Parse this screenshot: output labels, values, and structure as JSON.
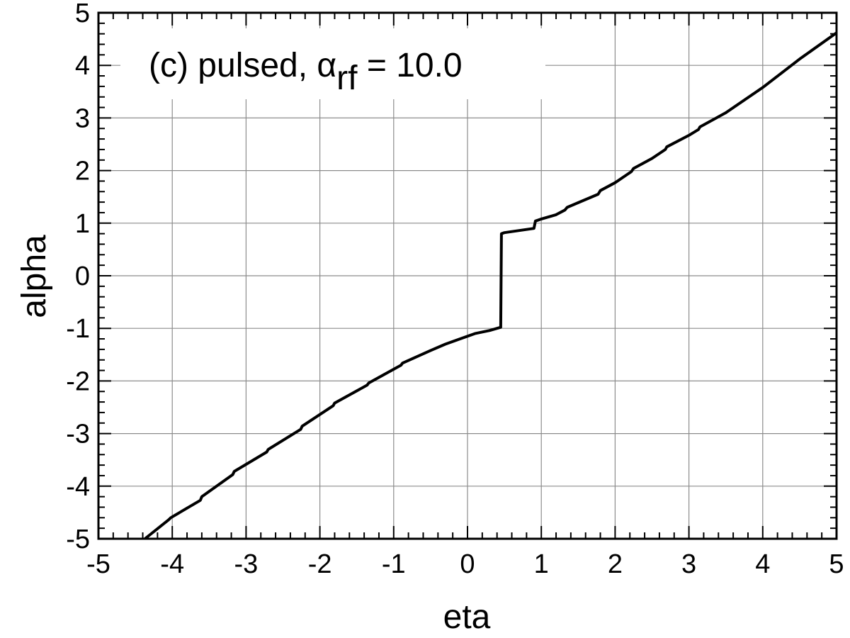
{
  "chart_data": {
    "type": "line",
    "title": "",
    "xlabel": "eta",
    "ylabel": "alpha",
    "xlim": [
      -5,
      5
    ],
    "ylim": [
      -5,
      5
    ],
    "grid": true,
    "x_ticks": [
      "-5",
      "-4",
      "-3",
      "-2",
      "-1",
      "0",
      "1",
      "2",
      "3",
      "4",
      "5"
    ],
    "y_ticks": [
      "-5",
      "-4",
      "-3",
      "-2",
      "-1",
      "0",
      "1",
      "2",
      "3",
      "4",
      "5"
    ],
    "annotation": {
      "prefix": "(c)  pulsed, ",
      "symbol": "α",
      "subscript": "rf",
      "suffix": " = 10.0"
    },
    "series": [
      {
        "color": "#000000",
        "x": [
          -4.37,
          -4.05,
          -4.02,
          -3.62,
          -3.6,
          -3.18,
          -3.16,
          -2.72,
          -2.7,
          -2.26,
          -2.24,
          -1.82,
          -1.8,
          -1.36,
          -1.34,
          -0.9,
          -0.88,
          -0.5,
          -0.3,
          -0.1,
          0.1,
          0.3,
          0.45,
          0.46,
          0.5,
          0.6,
          0.7,
          0.9,
          0.92,
          1.0,
          1.1,
          1.2,
          1.32,
          1.35,
          1.5,
          1.77,
          1.8,
          2.0,
          2.22,
          2.25,
          2.5,
          2.68,
          2.7,
          3.0,
          3.13,
          3.15,
          3.5,
          4.0,
          4.5,
          5.0
        ],
        "y": [
          -5.0,
          -4.64,
          -4.6,
          -4.27,
          -4.2,
          -3.78,
          -3.72,
          -3.35,
          -3.3,
          -2.92,
          -2.86,
          -2.47,
          -2.42,
          -2.08,
          -2.04,
          -1.7,
          -1.66,
          -1.42,
          -1.3,
          -1.2,
          -1.1,
          -1.04,
          -0.98,
          0.8,
          0.82,
          0.84,
          0.86,
          0.9,
          1.04,
          1.08,
          1.12,
          1.16,
          1.25,
          1.3,
          1.39,
          1.55,
          1.62,
          1.77,
          1.98,
          2.04,
          2.23,
          2.4,
          2.45,
          2.67,
          2.78,
          2.83,
          3.1,
          3.58,
          4.12,
          4.62
        ]
      }
    ]
  },
  "colors": {
    "grid": "#8c8c8c",
    "axis": "#000000",
    "line": "#000000"
  }
}
